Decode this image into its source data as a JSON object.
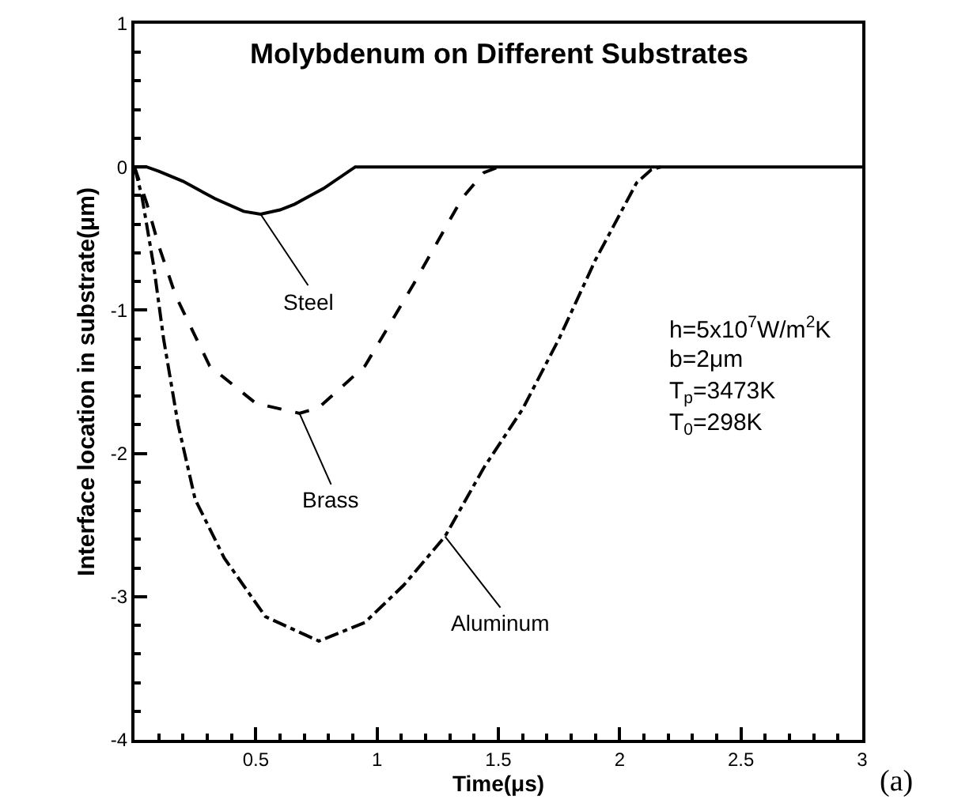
{
  "chart_data": {
    "type": "line",
    "title": "Molybdenum on Different Substrates",
    "xlabel": "Time(μs)",
    "ylabel": "Interface location in substrate(μm)",
    "xlim": [
      0,
      3
    ],
    "xticks": [
      0.5,
      1,
      1.5,
      2,
      2.5,
      3
    ],
    "ylim": [
      -4,
      1
    ],
    "yticks": [
      -4,
      -3,
      -2,
      -1,
      0,
      1
    ],
    "marker": "none",
    "series": [
      {
        "color": "#000000",
        "line_style": "solid",
        "x": [
          0,
          0.05,
          0.1,
          0.2,
          0.33,
          0.45,
          0.52,
          0.6,
          0.66,
          0.78,
          0.91,
          3
        ],
        "values": [
          0,
          0,
          -0.03,
          -0.1,
          -0.22,
          -0.31,
          -0.33,
          -0.3,
          -0.26,
          -0.15,
          0,
          0
        ]
      },
      {
        "color": "#000000",
        "line_style": "dashed",
        "x": [
          0,
          0.05,
          0.1,
          0.17,
          0.31,
          0.5,
          0.68,
          0.76,
          0.95,
          1.15,
          1.35,
          1.44,
          1.5
        ],
        "values": [
          0,
          -0.25,
          -0.55,
          -0.9,
          -1.39,
          -1.65,
          -1.72,
          -1.68,
          -1.39,
          -0.82,
          -0.22,
          -0.04,
          0
        ]
      },
      {
        "color": "#000000",
        "line_style": "dashdot",
        "x": [
          0,
          0.03,
          0.08,
          0.12,
          0.18,
          0.25,
          0.37,
          0.54,
          0.76,
          0.95,
          1.11,
          1.28,
          1.44,
          1.6,
          1.75,
          1.9,
          2.07,
          2.13,
          2.17
        ],
        "values": [
          0,
          -0.2,
          -0.7,
          -1.2,
          -1.8,
          -2.32,
          -2.73,
          -3.14,
          -3.31,
          -3.18,
          -2.92,
          -2.58,
          -2.1,
          -1.69,
          -1.2,
          -0.65,
          -0.11,
          -0.02,
          0
        ]
      }
    ],
    "annotations": [
      {
        "text": "Steel",
        "x": 0.52,
        "y": -0.33
      },
      {
        "text": "Brass",
        "x": 0.68,
        "y": -1.72
      },
      {
        "text": "Aluminum",
        "x": 1.28,
        "y": -2.58
      },
      "h=5x10$^{7}$W/m$^{2}$K",
      "b=2μm",
      "T$_{p}$=3473K",
      "T$_{0}$=298K",
      "(a)"
    ]
  }
}
